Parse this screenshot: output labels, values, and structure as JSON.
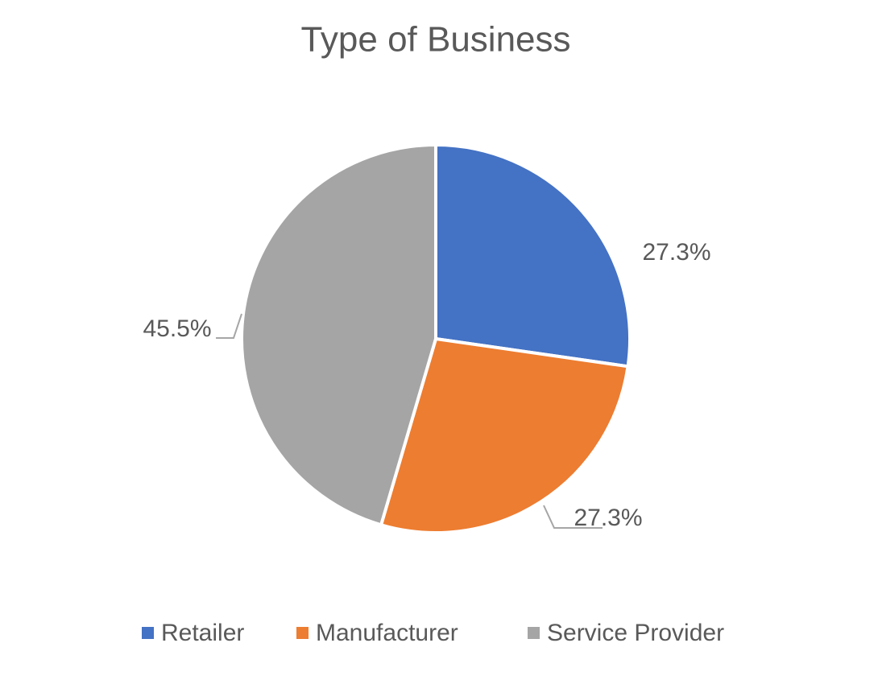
{
  "chart_data": {
    "type": "pie",
    "title": "Type of Business",
    "categories": [
      "Retailer",
      "Manufacturer",
      "Service Provider"
    ],
    "values": [
      27.3,
      27.3,
      45.5
    ],
    "value_labels": [
      "27.3%",
      "27.3%",
      "45.5%"
    ],
    "colors": [
      "#4472c4",
      "#ed7d31",
      "#a5a5a5"
    ],
    "legend": "bottom"
  }
}
